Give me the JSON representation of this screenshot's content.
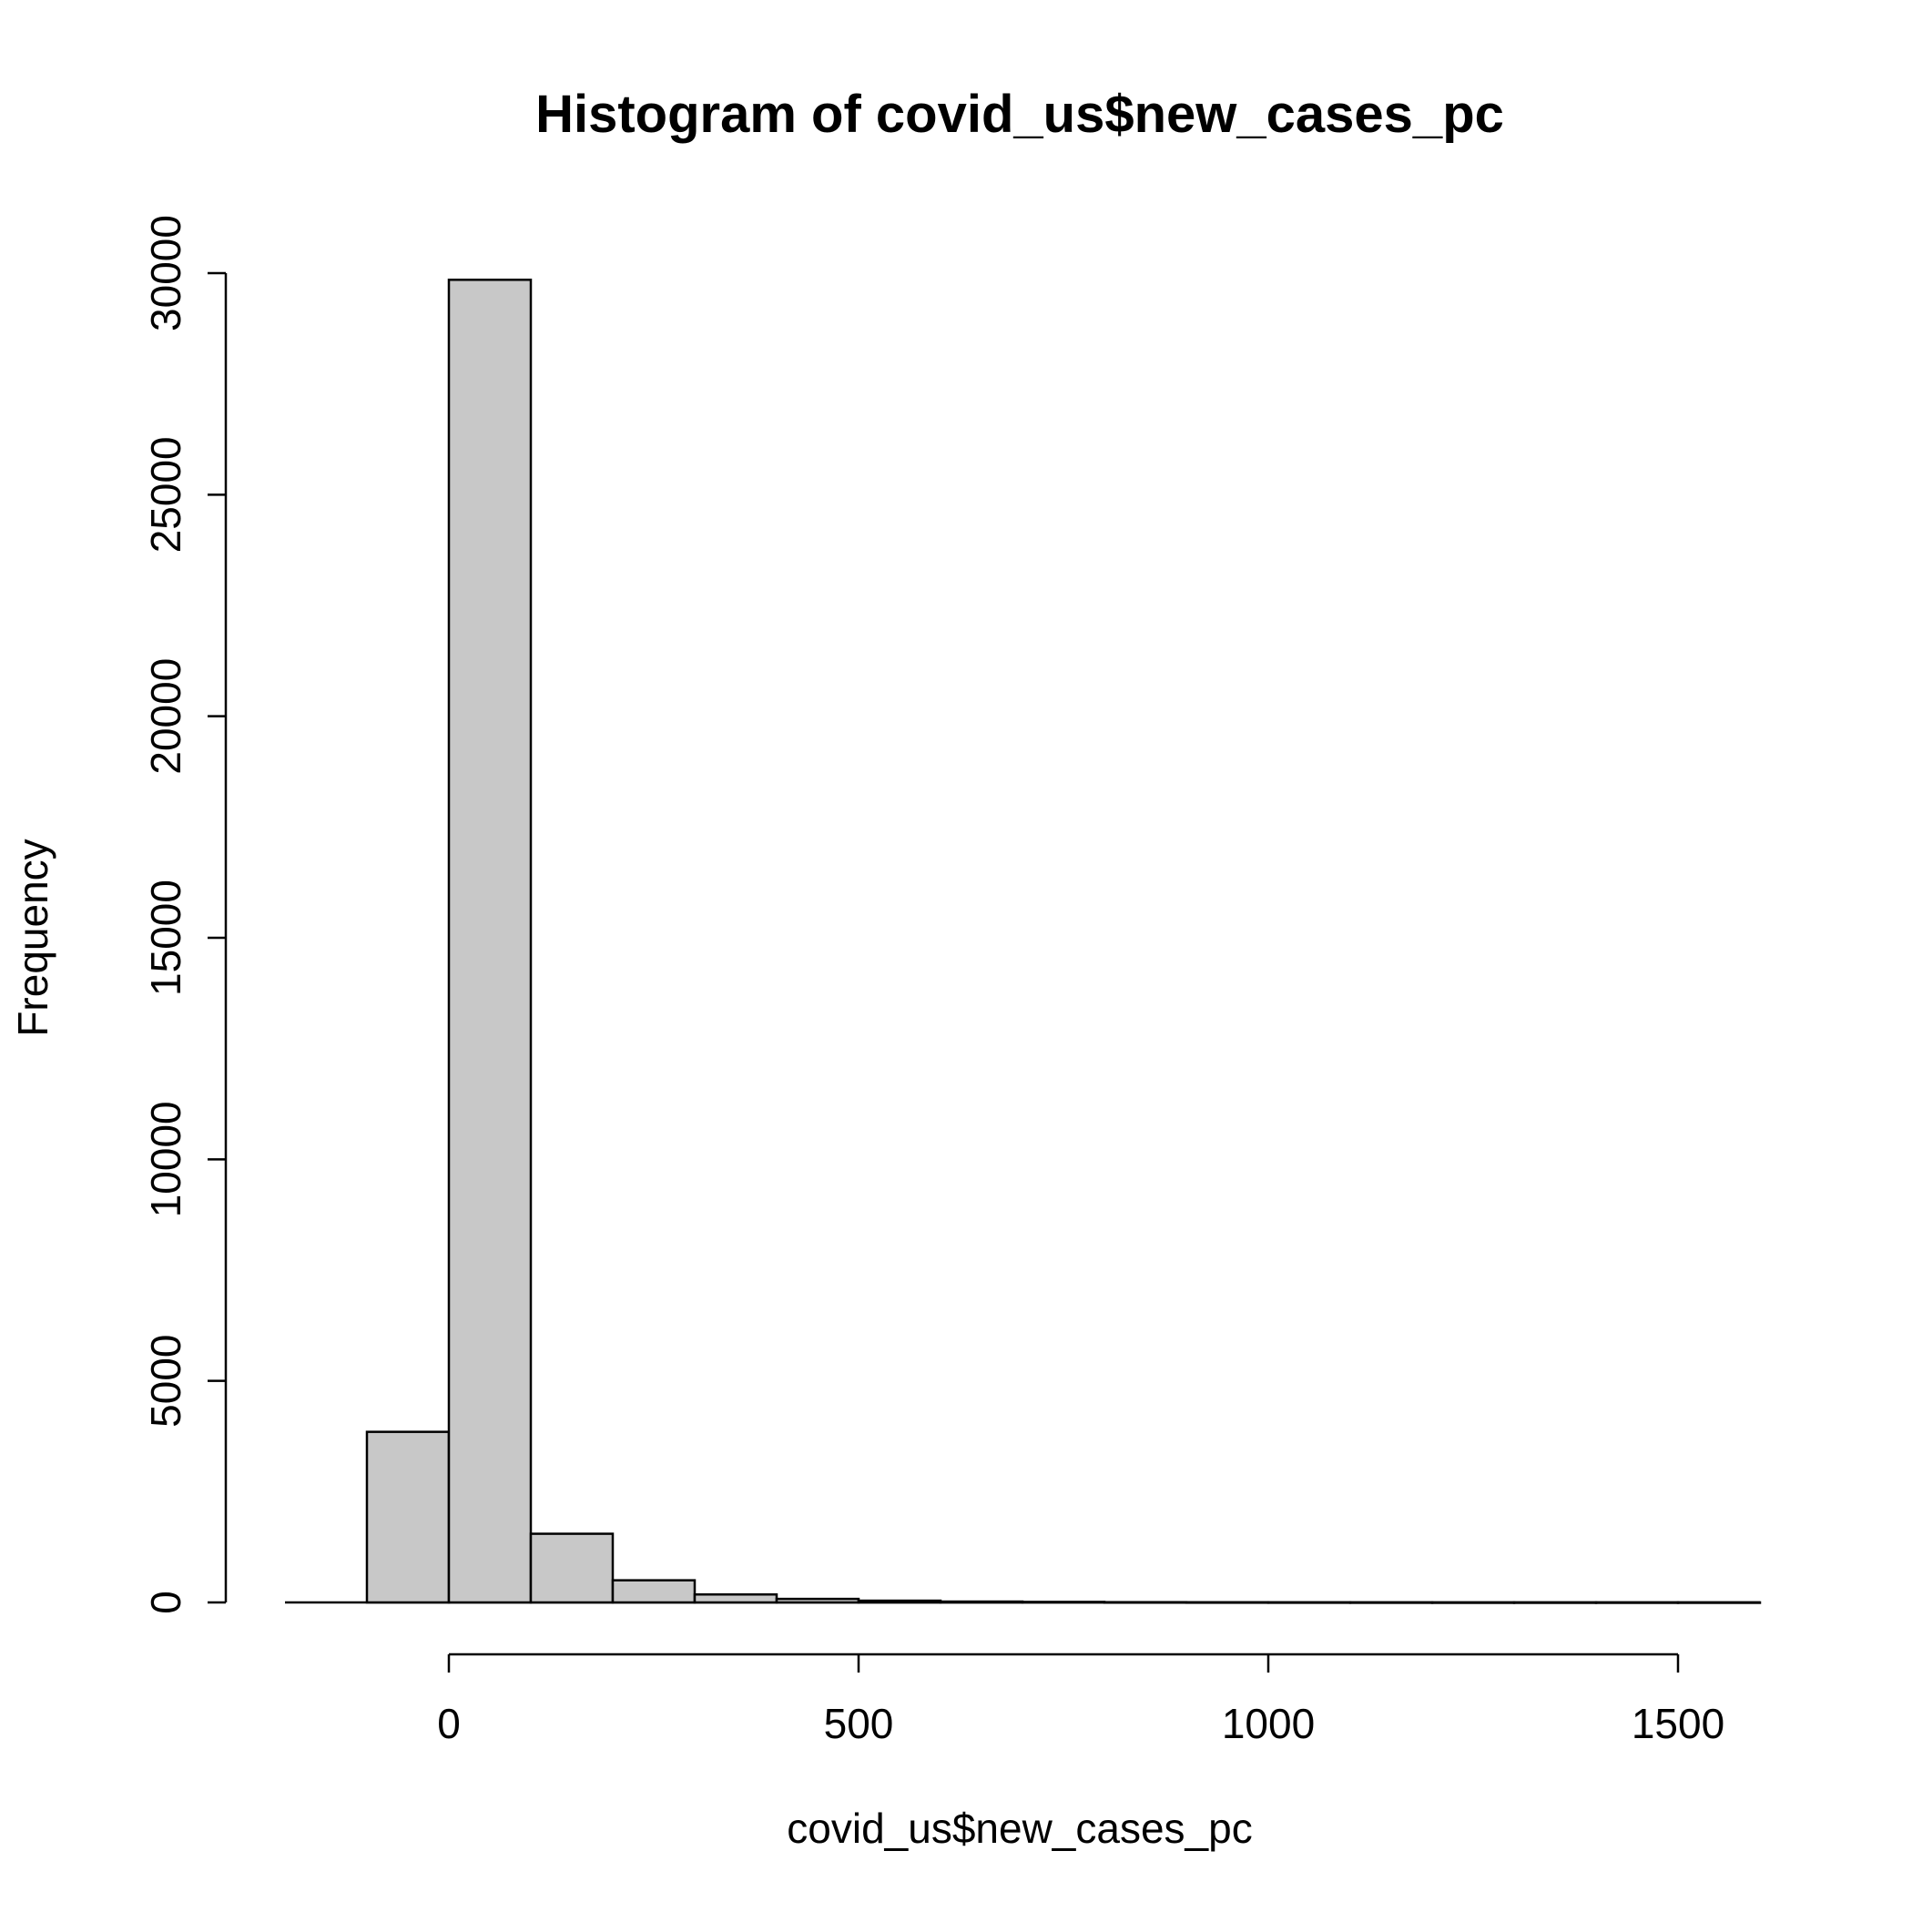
{
  "chart_data": {
    "type": "bar",
    "title": "Histogram of covid_us$new_cases_pc",
    "xlabel": "covid_us$new_cases_pc",
    "ylabel": "Frequency",
    "bin_width": 100,
    "bins": [
      {
        "start": -100,
        "end": 0,
        "count": 3850
      },
      {
        "start": 0,
        "end": 100,
        "count": 29850
      },
      {
        "start": 100,
        "end": 200,
        "count": 1550
      },
      {
        "start": 200,
        "end": 300,
        "count": 500
      },
      {
        "start": 300,
        "end": 400,
        "count": 180
      },
      {
        "start": 400,
        "end": 500,
        "count": 80
      },
      {
        "start": 500,
        "end": 600,
        "count": 40
      },
      {
        "start": 600,
        "end": 700,
        "count": 20
      },
      {
        "start": 700,
        "end": 800,
        "count": 12
      },
      {
        "start": 800,
        "end": 900,
        "count": 6
      },
      {
        "start": 900,
        "end": 1000,
        "count": 4
      },
      {
        "start": 1000,
        "end": 1100,
        "count": 3
      },
      {
        "start": 1100,
        "end": 1200,
        "count": 2
      },
      {
        "start": 1200,
        "end": 1300,
        "count": 1
      },
      {
        "start": 1300,
        "end": 1400,
        "count": 1
      },
      {
        "start": 1400,
        "end": 1500,
        "count": 1
      },
      {
        "start": 1500,
        "end": 1600,
        "count": 1
      }
    ],
    "x_ticks": [
      0,
      500,
      1000,
      1500
    ],
    "x_tick_labels": [
      "0",
      "500",
      "1000",
      "1500"
    ],
    "y_ticks": [
      0,
      5000,
      10000,
      15000,
      20000,
      25000,
      30000
    ],
    "y_tick_labels": [
      "0",
      "5000",
      "10000",
      "15000",
      "20000",
      "25000",
      "30000"
    ],
    "xlim": [
      -200,
      1600
    ],
    "ylim": [
      0,
      30000
    ],
    "grid": false,
    "colors": {
      "bar_fill": "#c8c8c8",
      "bar_stroke": "#000000"
    }
  }
}
